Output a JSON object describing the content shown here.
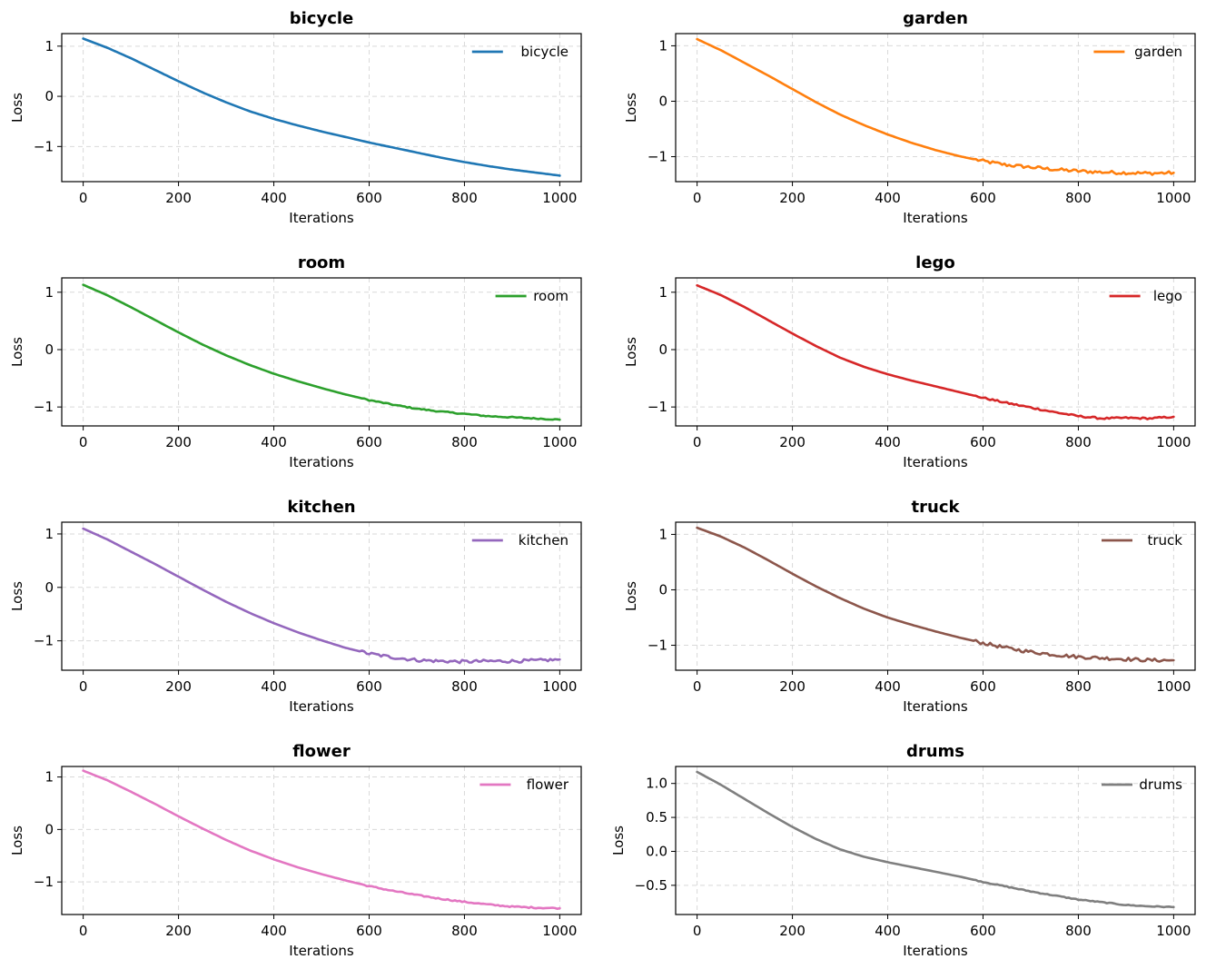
{
  "chart_data": [
    {
      "type": "line",
      "title": "bicycle",
      "xlabel": "Iterations",
      "ylabel": "Loss",
      "xlim": [
        -45,
        1045
      ],
      "ylim": [
        -1.7,
        1.25
      ],
      "xticks": [
        0,
        200,
        400,
        600,
        800,
        1000
      ],
      "xtick_labels": [
        "0",
        "200",
        "400",
        "600",
        "800",
        "1000"
      ],
      "yticks": [
        1,
        0,
        -1
      ],
      "ytick_labels": [
        "1",
        "0",
        "−1"
      ],
      "grid": true,
      "legend_position": "upper-right",
      "series": [
        {
          "name": "bicycle",
          "color": "#1f77b4",
          "noise": 0,
          "x": [
            0,
            50,
            100,
            150,
            200,
            250,
            300,
            350,
            400,
            450,
            500,
            550,
            600,
            650,
            700,
            750,
            800,
            850,
            900,
            950,
            1000
          ],
          "y": [
            1.15,
            0.97,
            0.76,
            0.53,
            0.3,
            0.08,
            -0.12,
            -0.3,
            -0.45,
            -0.58,
            -0.7,
            -0.81,
            -0.92,
            -1.02,
            -1.12,
            -1.22,
            -1.31,
            -1.39,
            -1.46,
            -1.52,
            -1.58
          ]
        }
      ]
    },
    {
      "type": "line",
      "title": "garden",
      "xlabel": "Iterations",
      "ylabel": "Loss",
      "xlim": [
        -45,
        1045
      ],
      "ylim": [
        -1.45,
        1.22
      ],
      "xticks": [
        0,
        200,
        400,
        600,
        800,
        1000
      ],
      "xtick_labels": [
        "0",
        "200",
        "400",
        "600",
        "800",
        "1000"
      ],
      "yticks": [
        1,
        0,
        -1
      ],
      "ytick_labels": [
        "1",
        "0",
        "−1"
      ],
      "grid": true,
      "legend_position": "upper-right",
      "series": [
        {
          "name": "garden",
          "color": "#ff7f0e",
          "noise": 0.03,
          "x": [
            0,
            50,
            100,
            150,
            200,
            250,
            300,
            350,
            400,
            450,
            500,
            550,
            600,
            650,
            700,
            750,
            800,
            850,
            900,
            950,
            1000
          ],
          "y": [
            1.12,
            0.92,
            0.69,
            0.46,
            0.22,
            -0.02,
            -0.24,
            -0.43,
            -0.6,
            -0.75,
            -0.88,
            -0.99,
            -1.08,
            -1.15,
            -1.19,
            -1.23,
            -1.26,
            -1.28,
            -1.29,
            -1.3,
            -1.29
          ]
        }
      ]
    },
    {
      "type": "line",
      "title": "room",
      "xlabel": "Iterations",
      "ylabel": "Loss",
      "xlim": [
        -45,
        1045
      ],
      "ylim": [
        -1.33,
        1.25
      ],
      "xticks": [
        0,
        200,
        400,
        600,
        800,
        1000
      ],
      "xtick_labels": [
        "0",
        "200",
        "400",
        "600",
        "800",
        "1000"
      ],
      "yticks": [
        1,
        0,
        -1
      ],
      "ytick_labels": [
        "1",
        "0",
        "−1"
      ],
      "grid": true,
      "legend_position": "upper-right",
      "series": [
        {
          "name": "room",
          "color": "#2ca02c",
          "noise": 0.01,
          "x": [
            0,
            50,
            100,
            150,
            200,
            250,
            300,
            350,
            400,
            450,
            500,
            550,
            600,
            650,
            700,
            750,
            800,
            850,
            900,
            950,
            1000
          ],
          "y": [
            1.13,
            0.95,
            0.74,
            0.52,
            0.3,
            0.09,
            -0.1,
            -0.27,
            -0.42,
            -0.55,
            -0.67,
            -0.78,
            -0.88,
            -0.96,
            -1.03,
            -1.08,
            -1.12,
            -1.16,
            -1.18,
            -1.2,
            -1.22
          ]
        }
      ]
    },
    {
      "type": "line",
      "title": "lego",
      "xlabel": "Iterations",
      "ylabel": "Loss",
      "xlim": [
        -45,
        1045
      ],
      "ylim": [
        -1.33,
        1.25
      ],
      "xticks": [
        0,
        200,
        400,
        600,
        800,
        1000
      ],
      "xtick_labels": [
        "0",
        "200",
        "400",
        "600",
        "800",
        "1000"
      ],
      "yticks": [
        1,
        0,
        -1
      ],
      "ytick_labels": [
        "1",
        "0",
        "−1"
      ],
      "grid": true,
      "legend_position": "upper-right",
      "series": [
        {
          "name": "lego",
          "color": "#d62728",
          "noise": 0.015,
          "x": [
            0,
            50,
            100,
            150,
            200,
            250,
            300,
            350,
            400,
            450,
            500,
            550,
            600,
            650,
            700,
            750,
            800,
            850,
            900,
            950,
            1000
          ],
          "y": [
            1.12,
            0.95,
            0.74,
            0.51,
            0.28,
            0.06,
            -0.14,
            -0.3,
            -0.43,
            -0.54,
            -0.64,
            -0.74,
            -0.84,
            -0.93,
            -1.01,
            -1.09,
            -1.16,
            -1.2,
            -1.19,
            -1.2,
            -1.17
          ]
        }
      ]
    },
    {
      "type": "line",
      "title": "kitchen",
      "xlabel": "Iterations",
      "ylabel": "Loss",
      "xlim": [
        -45,
        1045
      ],
      "ylim": [
        -1.55,
        1.22
      ],
      "xticks": [
        0,
        200,
        400,
        600,
        800,
        1000
      ],
      "xtick_labels": [
        "0",
        "200",
        "400",
        "600",
        "800",
        "1000"
      ],
      "yticks": [
        1,
        0,
        -1
      ],
      "ytick_labels": [
        "1",
        "0",
        "−1"
      ],
      "grid": true,
      "legend_position": "upper-right",
      "series": [
        {
          "name": "kitchen",
          "color": "#9467bd",
          "noise": 0.03,
          "x": [
            0,
            50,
            100,
            150,
            200,
            250,
            300,
            350,
            400,
            450,
            500,
            550,
            600,
            650,
            700,
            750,
            800,
            850,
            900,
            950,
            1000
          ],
          "y": [
            1.1,
            0.9,
            0.67,
            0.44,
            0.2,
            -0.04,
            -0.27,
            -0.48,
            -0.67,
            -0.84,
            -0.99,
            -1.13,
            -1.24,
            -1.31,
            -1.36,
            -1.38,
            -1.39,
            -1.38,
            -1.38,
            -1.37,
            -1.35
          ]
        }
      ]
    },
    {
      "type": "line",
      "title": "truck",
      "xlabel": "Iterations",
      "ylabel": "Loss",
      "xlim": [
        -45,
        1045
      ],
      "ylim": [
        -1.45,
        1.22
      ],
      "xticks": [
        0,
        200,
        400,
        600,
        800,
        1000
      ],
      "xtick_labels": [
        "0",
        "200",
        "400",
        "600",
        "800",
        "1000"
      ],
      "yticks": [
        1,
        0,
        -1
      ],
      "ytick_labels": [
        "1",
        "0",
        "−1"
      ],
      "grid": true,
      "legend_position": "upper-right",
      "series": [
        {
          "name": "truck",
          "color": "#8c564b",
          "noise": 0.03,
          "x": [
            0,
            50,
            100,
            150,
            200,
            250,
            300,
            350,
            400,
            450,
            500,
            550,
            600,
            650,
            700,
            750,
            800,
            850,
            900,
            950,
            1000
          ],
          "y": [
            1.12,
            0.96,
            0.76,
            0.53,
            0.29,
            0.06,
            -0.15,
            -0.34,
            -0.5,
            -0.63,
            -0.75,
            -0.86,
            -0.96,
            -1.05,
            -1.12,
            -1.17,
            -1.21,
            -1.23,
            -1.25,
            -1.27,
            -1.27
          ]
        }
      ]
    },
    {
      "type": "line",
      "title": "flower",
      "xlabel": "Iterations",
      "ylabel": "Loss",
      "xlim": [
        -45,
        1045
      ],
      "ylim": [
        -1.62,
        1.2
      ],
      "xticks": [
        0,
        200,
        400,
        600,
        800,
        1000
      ],
      "xtick_labels": [
        "0",
        "200",
        "400",
        "600",
        "800",
        "1000"
      ],
      "yticks": [
        1,
        0,
        -1
      ],
      "ytick_labels": [
        "1",
        "0",
        "−1"
      ],
      "grid": true,
      "legend_position": "upper-right",
      "series": [
        {
          "name": "flower",
          "color": "#e377c2",
          "noise": 0.012,
          "x": [
            0,
            50,
            100,
            150,
            200,
            250,
            300,
            350,
            400,
            450,
            500,
            550,
            600,
            650,
            700,
            750,
            800,
            850,
            900,
            950,
            1000
          ],
          "y": [
            1.12,
            0.94,
            0.72,
            0.49,
            0.25,
            0.02,
            -0.2,
            -0.4,
            -0.57,
            -0.72,
            -0.85,
            -0.97,
            -1.08,
            -1.17,
            -1.25,
            -1.32,
            -1.38,
            -1.43,
            -1.47,
            -1.49,
            -1.5
          ]
        }
      ]
    },
    {
      "type": "line",
      "title": "drums",
      "xlabel": "Iterations",
      "ylabel": "Loss",
      "xlim": [
        -45,
        1045
      ],
      "ylim": [
        -0.93,
        1.25
      ],
      "xticks": [
        0,
        200,
        400,
        600,
        800,
        1000
      ],
      "xtick_labels": [
        "0",
        "200",
        "400",
        "600",
        "800",
        "1000"
      ],
      "yticks": [
        1.0,
        0.5,
        0.0,
        -0.5
      ],
      "ytick_labels": [
        "1.0",
        "0.5",
        "0.0",
        "−0.5"
      ],
      "grid": true,
      "legend_position": "upper-right",
      "series": [
        {
          "name": "drums",
          "color": "#7f7f7f",
          "noise": 0.007,
          "x": [
            0,
            50,
            100,
            150,
            200,
            250,
            300,
            350,
            400,
            450,
            500,
            550,
            600,
            650,
            700,
            750,
            800,
            850,
            900,
            950,
            1000
          ],
          "y": [
            1.17,
            0.98,
            0.77,
            0.56,
            0.36,
            0.18,
            0.03,
            -0.08,
            -0.16,
            -0.23,
            -0.3,
            -0.37,
            -0.45,
            -0.52,
            -0.59,
            -0.65,
            -0.71,
            -0.75,
            -0.79,
            -0.81,
            -0.82
          ]
        }
      ]
    }
  ]
}
